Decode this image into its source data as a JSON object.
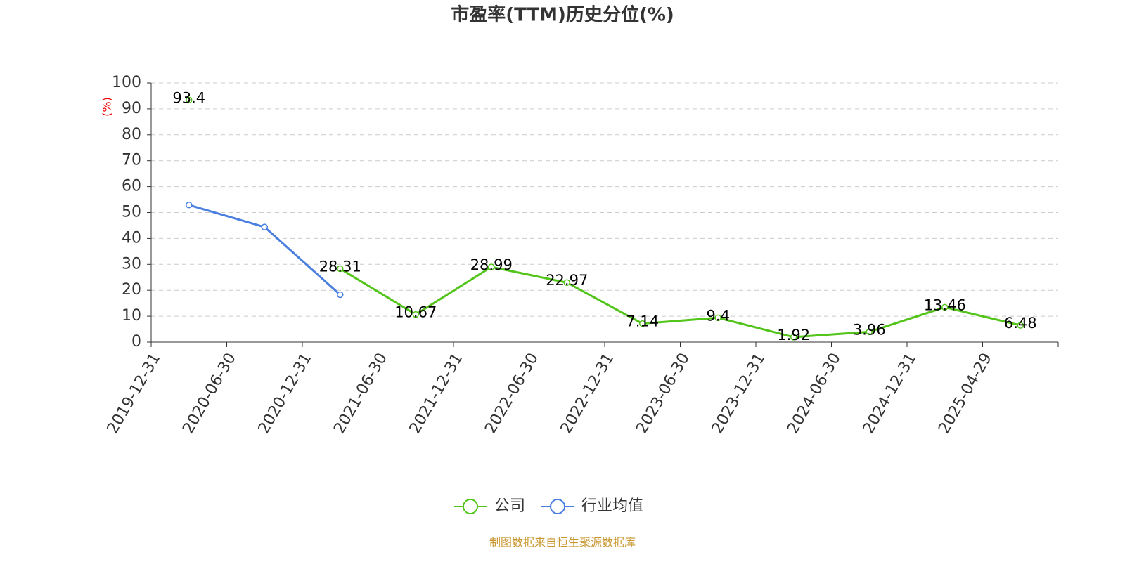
{
  "chart_data": {
    "type": "line",
    "title": "市盈率(TTM)历史分位(%)",
    "y_label": "(%)",
    "categories": [
      "2019-12-31",
      "2020-06-30",
      "2020-12-31",
      "2021-06-30",
      "2021-12-31",
      "2022-06-30",
      "2022-12-31",
      "2023-06-30",
      "2023-12-31",
      "2024-06-30",
      "2024-12-31",
      "2025-04-29"
    ],
    "series": [
      {
        "name": "公司",
        "color": "#52c41a",
        "values": [
          93.4,
          null,
          28.31,
          10.67,
          28.99,
          22.97,
          7.14,
          9.4,
          1.92,
          3.96,
          13.46,
          6.48
        ],
        "data_labels": true
      },
      {
        "name": "行业均值",
        "color": "#4a7fe0",
        "values": [
          52.9,
          44.4,
          18.3,
          null,
          null,
          null,
          null,
          null,
          null,
          null,
          null,
          null
        ],
        "data_labels": false
      }
    ],
    "ylim": [
      0,
      100
    ],
    "yticks": [
      0,
      10,
      20,
      30,
      40,
      50,
      60,
      70,
      80,
      90,
      100
    ],
    "grid": true,
    "legend": "bottom",
    "source": "制图数据来自恒生聚源数据库"
  }
}
